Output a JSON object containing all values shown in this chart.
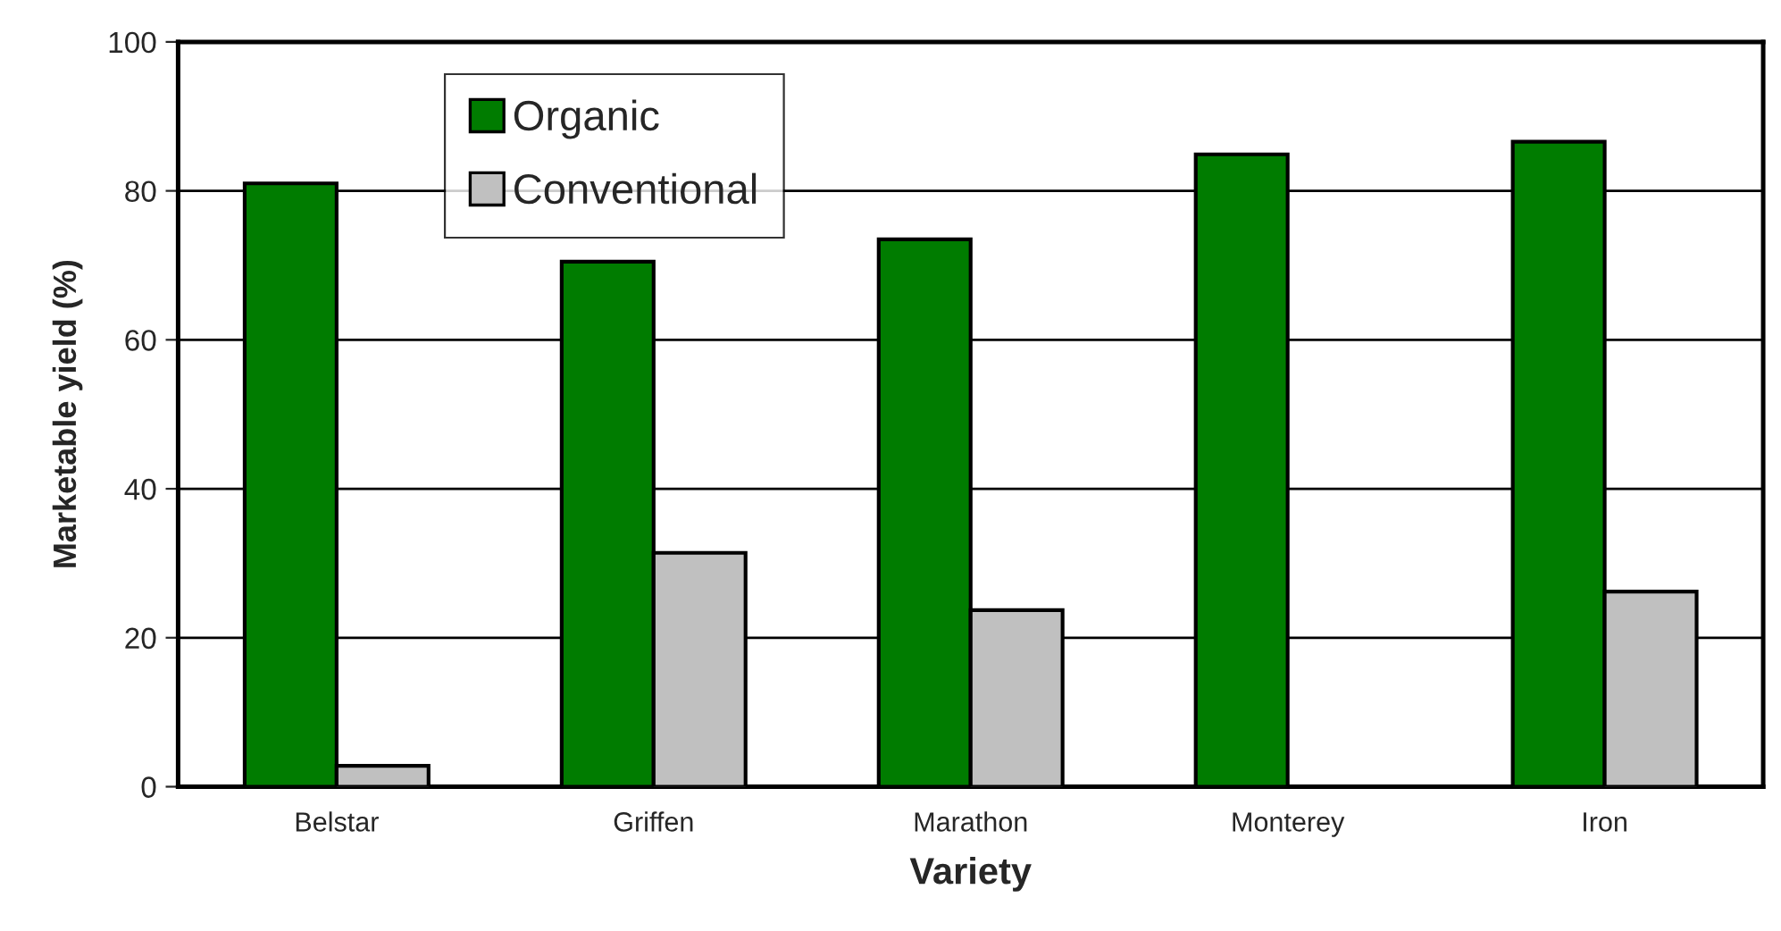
{
  "chart_data": {
    "type": "bar",
    "xlabel": "Variety",
    "ylabel": "Marketable yield (%)",
    "categories": [
      "Belstar",
      "Griffen",
      "Marathon",
      "Monterey",
      "Iron"
    ],
    "series": [
      {
        "name": "Organic",
        "color": "#007c00",
        "values": [
          81.0,
          70.5,
          73.5,
          84.9,
          86.6
        ]
      },
      {
        "name": "Conventional",
        "color": "#c0c0c0",
        "values": [
          2.8,
          31.4,
          23.7,
          null,
          26.2
        ]
      }
    ],
    "ylim": [
      0,
      100
    ],
    "yticks": [
      0,
      20,
      40,
      60,
      80,
      100
    ],
    "grid": "y",
    "legend": "top left"
  }
}
